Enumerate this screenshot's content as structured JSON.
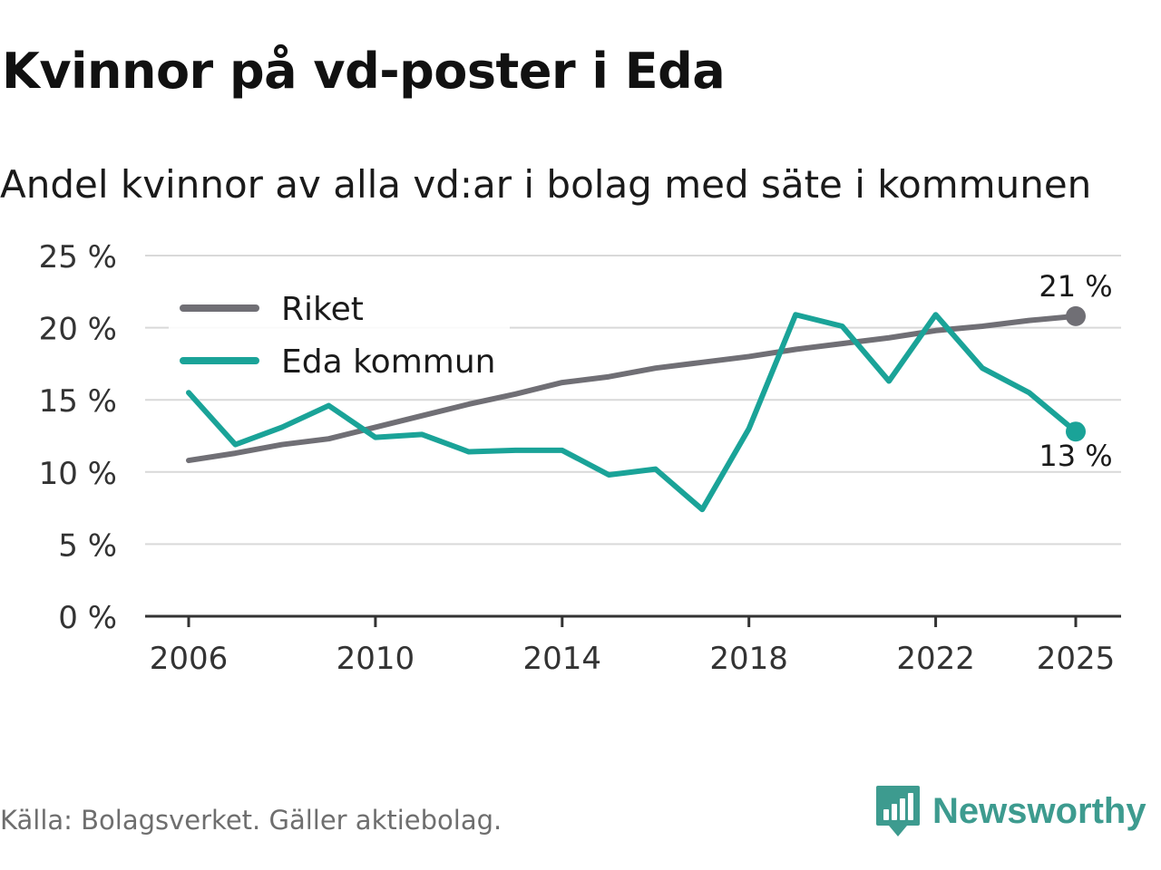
{
  "title": "Kvinnor på vd-poster i Eda",
  "subtitle": "Andel kvinnor av alla vd:ar i bolag med säte i kommunen",
  "source": "Källa: Bolagsverket. Gäller aktiebolag.",
  "brand": {
    "name": "Newsworthy",
    "color": "#3d9b8f"
  },
  "chart_data": {
    "type": "line",
    "title": "Kvinnor på vd-poster i Eda",
    "subtitle": "Andel kvinnor av alla vd:ar i bolag med säte i kommunen",
    "xlabel": "",
    "ylabel": "",
    "ylim": [
      0,
      25
    ],
    "yticks": [
      0,
      5,
      10,
      15,
      20,
      25
    ],
    "ytick_labels": [
      "0 %",
      "5 %",
      "10 %",
      "15 %",
      "20 %",
      "25 %"
    ],
    "xticks": [
      2006,
      2010,
      2014,
      2018,
      2022,
      2025
    ],
    "xtick_labels": [
      "2006",
      "2010",
      "2014",
      "2018",
      "2022",
      "2025"
    ],
    "x": [
      2006,
      2007,
      2008,
      2009,
      2010,
      2011,
      2012,
      2013,
      2014,
      2015,
      2016,
      2017,
      2018,
      2019,
      2020,
      2021,
      2022,
      2023,
      2024,
      2025
    ],
    "grid": true,
    "legend_position": "top-left",
    "series": [
      {
        "name": "Riket",
        "color": "#706f75",
        "values": [
          10.8,
          11.3,
          11.9,
          12.3,
          13.1,
          13.9,
          14.7,
          15.4,
          16.2,
          16.6,
          17.2,
          17.6,
          18.0,
          18.5,
          18.9,
          19.3,
          19.8,
          20.1,
          20.5,
          20.8
        ],
        "end_label": "21 %"
      },
      {
        "name": "Eda kommun",
        "color": "#1aa398",
        "values": [
          15.5,
          11.9,
          13.1,
          14.6,
          12.4,
          12.6,
          11.4,
          11.5,
          11.5,
          9.8,
          10.2,
          7.4,
          13.0,
          20.9,
          20.1,
          16.3,
          20.9,
          17.2,
          15.5,
          12.8
        ],
        "end_label": "13 %"
      }
    ]
  }
}
